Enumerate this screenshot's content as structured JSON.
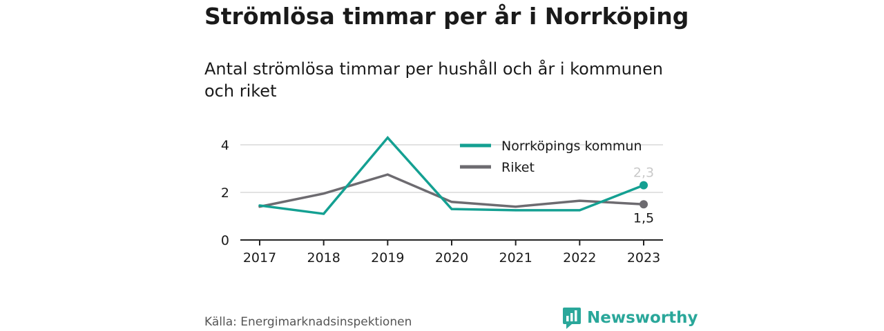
{
  "title": "Strömlösa timmar per år i Norrköping",
  "subtitle": "Antal strömlösa timmar per hushåll och år i kommunen och riket",
  "source": "Källa: Energimarknadsinspektionen",
  "brand": {
    "name": "Newsworthy",
    "icon": "newsworthy-logo-icon",
    "color": "#2aa79a"
  },
  "chart_data": {
    "type": "line",
    "categories": [
      "2017",
      "2018",
      "2019",
      "2020",
      "2021",
      "2022",
      "2023"
    ],
    "ylim": [
      0,
      4.5
    ],
    "yticks": [
      0,
      2,
      4
    ],
    "grid": true,
    "legend_position": "top-right",
    "series": [
      {
        "name": "Norrköpings kommun",
        "color": "#14a092",
        "values": [
          1.45,
          1.1,
          4.3,
          1.3,
          1.25,
          1.25,
          2.3
        ],
        "end_label": "2,3"
      },
      {
        "name": "Riket",
        "color": "#6d6b70",
        "values": [
          1.4,
          1.95,
          2.75,
          1.6,
          1.4,
          1.65,
          1.5
        ],
        "end_label": "1,5"
      }
    ]
  }
}
